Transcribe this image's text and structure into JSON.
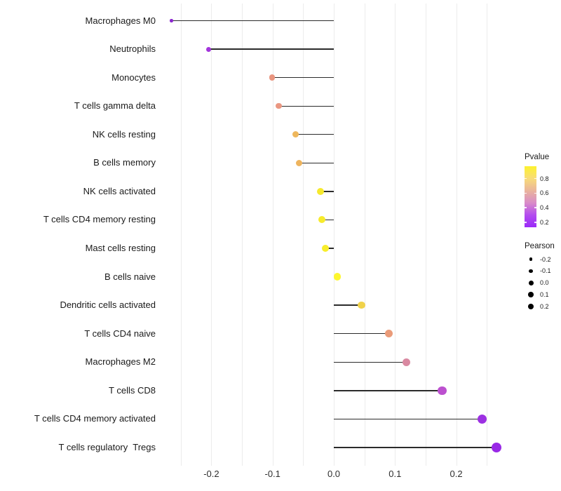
{
  "chart_data": {
    "type": "lollipop",
    "orientation": "horizontal",
    "title": "",
    "xlabel": "",
    "ylabel": "",
    "xlim": [
      -0.28,
      0.29
    ],
    "grid": "minor-and-major-verticals",
    "x_ticks": [
      {
        "value": -0.2,
        "label": "-0.2"
      },
      {
        "value": -0.1,
        "label": "-0.1"
      },
      {
        "value": 0.0,
        "label": "0.0"
      },
      {
        "value": 0.1,
        "label": "0.1"
      },
      {
        "value": 0.2,
        "label": "0.2"
      }
    ],
    "gridline_values": [
      -0.25,
      -0.2,
      -0.15,
      -0.1,
      -0.05,
      0.0,
      0.05,
      0.1,
      0.15,
      0.2,
      0.25
    ],
    "points": [
      {
        "label": "Macrophages M0",
        "pearson": -0.265,
        "pvalue_est": 0.2,
        "color": "#8b27cf",
        "diameter": 4.5
      },
      {
        "label": "Neutrophils",
        "pearson": -0.205,
        "pvalue_est": 0.25,
        "color": "#a335dc",
        "diameter": 7
      },
      {
        "label": "Monocytes",
        "pearson": -0.101,
        "pvalue_est": 0.6,
        "color": "#e9957f",
        "diameter": 8.5
      },
      {
        "label": "T cells gamma delta",
        "pearson": -0.09,
        "pvalue_est": 0.6,
        "color": "#ea9781",
        "diameter": 8.5
      },
      {
        "label": "NK cells resting",
        "pearson": -0.063,
        "pvalue_est": 0.75,
        "color": "#eeb75c",
        "diameter": 9
      },
      {
        "label": "B cells memory",
        "pearson": -0.057,
        "pvalue_est": 0.75,
        "color": "#eeb45e",
        "diameter": 9
      },
      {
        "label": "NK cells activated",
        "pearson": -0.022,
        "pvalue_est": 0.9,
        "color": "#f6e92d",
        "diameter": 10
      },
      {
        "label": "T cells CD4 memory resting",
        "pearson": -0.019,
        "pvalue_est": 0.9,
        "color": "#f7eb2c",
        "diameter": 10
      },
      {
        "label": "Mast cells resting",
        "pearson": -0.014,
        "pvalue_est": 0.92,
        "color": "#f8ed2b",
        "diameter": 10
      },
      {
        "label": "B cells naive",
        "pearson": 0.006,
        "pvalue_est": 0.95,
        "color": "#fdf62e",
        "diameter": 10.5
      },
      {
        "label": "Dendritic cells activated",
        "pearson": 0.045,
        "pvalue_est": 0.85,
        "color": "#f0d24a",
        "diameter": 10.5
      },
      {
        "label": "T cells CD4 naive",
        "pearson": 0.09,
        "pvalue_est": 0.62,
        "color": "#ea9b79",
        "diameter": 11
      },
      {
        "label": "Macrophages M2",
        "pearson": 0.119,
        "pvalue_est": 0.48,
        "color": "#d989a1",
        "diameter": 11
      },
      {
        "label": "T cells CD8",
        "pearson": 0.177,
        "pvalue_est": 0.35,
        "color": "#bc50cf",
        "diameter": 12.5
      },
      {
        "label": "T cells CD4 memory activated",
        "pearson": 0.242,
        "pvalue_est": 0.22,
        "color": "#9c30e2",
        "diameter": 13.5
      },
      {
        "label": "T cells regulatory  Tregs",
        "pearson": 0.266,
        "pvalue_est": 0.2,
        "color": "#9929e6",
        "diameter": 14.5
      }
    ],
    "legend": {
      "pvalue": {
        "title": "Pvalue",
        "ticks": [
          {
            "value": 0.8,
            "label": "0.8"
          },
          {
            "value": 0.6,
            "label": "0.6"
          },
          {
            "value": 0.4,
            "label": "0.4"
          },
          {
            "value": 0.2,
            "label": "0.2"
          }
        ],
        "range_top_to_bottom": [
          0.97,
          0.13
        ],
        "gradient_top_to_bottom": [
          "#fdf22e",
          "#f8dc78",
          "#eab49c",
          "#d98cc8",
          "#b34cef",
          "#9a2af8"
        ]
      },
      "pearson": {
        "title": "Pearson",
        "items": [
          {
            "label": "-0.2",
            "diameter": 4.6
          },
          {
            "label": "-0.1",
            "diameter": 5.8
          },
          {
            "label": "0.0",
            "diameter": 7.0
          },
          {
            "label": "0.1",
            "diameter": 7.8
          },
          {
            "label": "0.2",
            "diameter": 8.8
          }
        ]
      }
    },
    "style": {
      "segment_color": "#2b2b2b",
      "gridline_color": "#ececec",
      "axis_text_color": "#2e2e2e",
      "label_text_color": "#1a1a1a",
      "background": "#ffffff"
    }
  }
}
